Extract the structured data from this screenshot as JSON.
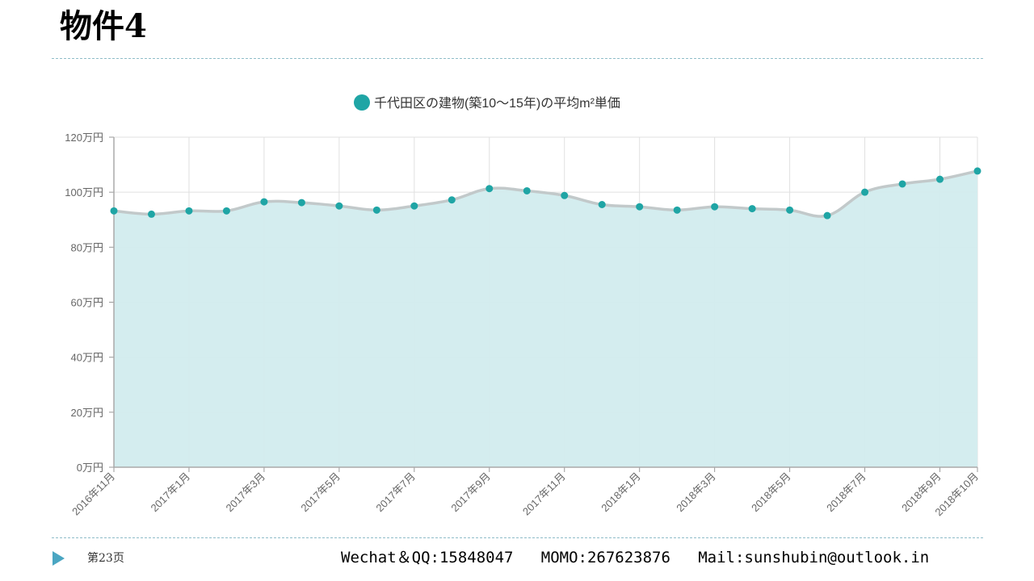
{
  "slide": {
    "title": "物件4",
    "page_label": "第23页",
    "contact": "Wechat＆QQ:15848047   MOMO:267623876   Mail:sunshubin@outlook.in"
  },
  "colors": {
    "series": "#1fa5a5",
    "area": "#d2ecee",
    "line": "#c2c9ca",
    "grid": "#e0e0e0",
    "accent": "#4aa6c2"
  },
  "chart_data": {
    "type": "area",
    "title": "",
    "xlabel": "",
    "ylabel": "",
    "ylim": [
      0,
      1200000
    ],
    "y_ticks": [
      {
        "value": 0,
        "label": "0万円"
      },
      {
        "value": 200000,
        "label": "20万円"
      },
      {
        "value": 400000,
        "label": "40万円"
      },
      {
        "value": 600000,
        "label": "60万円"
      },
      {
        "value": 800000,
        "label": "80万円"
      },
      {
        "value": 1000000,
        "label": "100万円"
      },
      {
        "value": 1200000,
        "label": "120万円"
      }
    ],
    "x_tick_labels": [
      {
        "index": 0,
        "label": "2016年11月"
      },
      {
        "index": 2,
        "label": "2017年1月"
      },
      {
        "index": 4,
        "label": "2017年3月"
      },
      {
        "index": 6,
        "label": "2017年5月"
      },
      {
        "index": 8,
        "label": "2017年7月"
      },
      {
        "index": 10,
        "label": "2017年9月"
      },
      {
        "index": 12,
        "label": "2017年11月"
      },
      {
        "index": 14,
        "label": "2018年1月"
      },
      {
        "index": 16,
        "label": "2018年3月"
      },
      {
        "index": 18,
        "label": "2018年5月"
      },
      {
        "index": 20,
        "label": "2018年7月"
      },
      {
        "index": 22,
        "label": "2018年9月"
      },
      {
        "index": 23,
        "label": "2018年10月"
      }
    ],
    "grid": true,
    "legend_position": "top-center",
    "series": [
      {
        "name": "千代田区の建物(築10～15年)の平均m²単価",
        "values": [
          932000,
          920000,
          932000,
          932000,
          965000,
          962000,
          950000,
          935000,
          950000,
          972000,
          1013000,
          1005000,
          988000,
          955000,
          947000,
          935000,
          947000,
          940000,
          935000,
          915000,
          1000000,
          1030000,
          1047000,
          1077000
        ]
      }
    ]
  }
}
